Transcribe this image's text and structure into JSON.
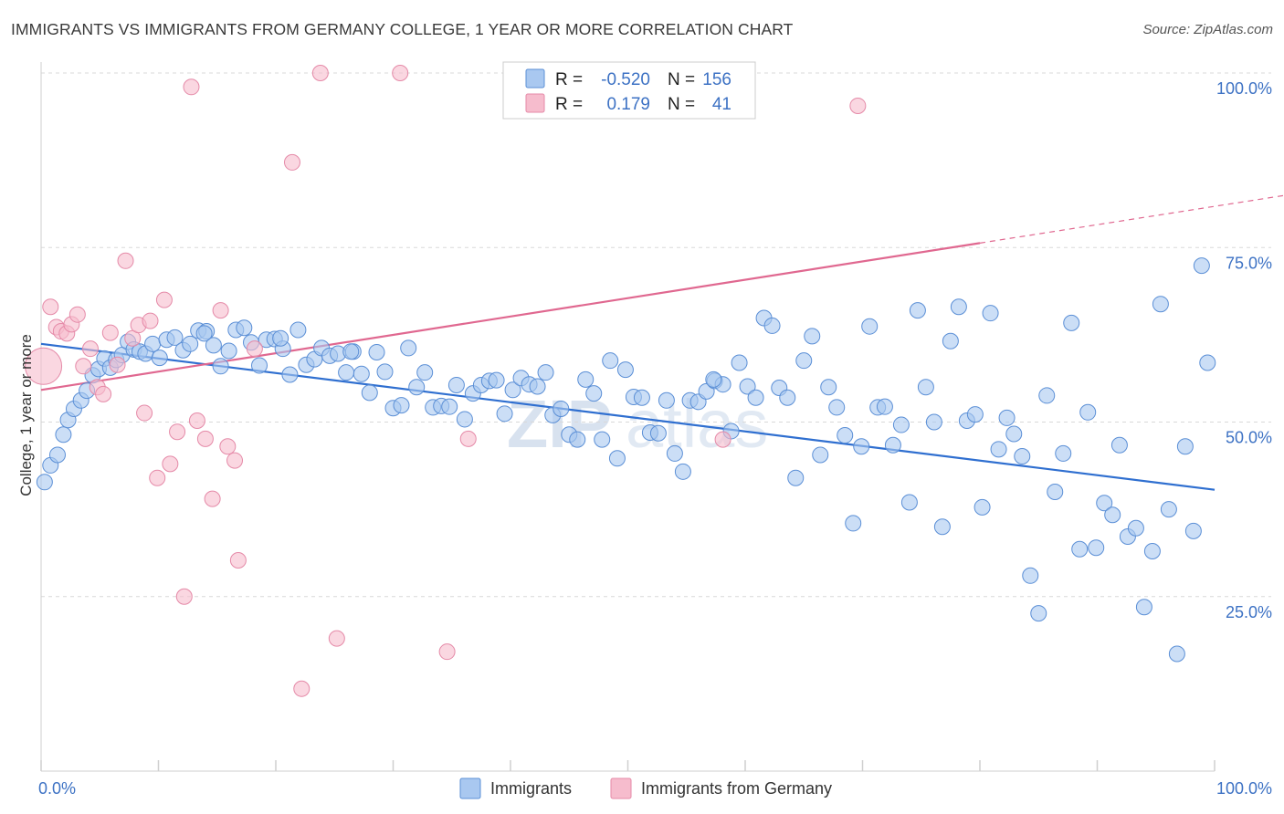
{
  "title": "IMMIGRANTS VS IMMIGRANTS FROM GERMANY COLLEGE, 1 YEAR OR MORE CORRELATION CHART",
  "source": "Source: ZipAtlas.com",
  "watermark": {
    "zip": "ZIP",
    "atlas": "atlas"
  },
  "stats_box": {
    "rows": [
      {
        "r_label": "R =",
        "r_value": "-0.520",
        "n_label": "N =",
        "n_value": "156",
        "color": "#a9c8f0",
        "border": "#5b8fd6"
      },
      {
        "r_label": "R =",
        "r_value": "0.179",
        "n_label": "N =",
        "n_value": "41",
        "color": "#f6bccd",
        "border": "#e07a9a"
      }
    ]
  },
  "colors": {
    "blue_fill": "#a9c8f0",
    "blue_stroke": "#5b8fd6",
    "blue_line": "#2f6fd0",
    "pink_fill": "#f6bccd",
    "pink_stroke": "#e58aa8",
    "pink_line": "#e06890",
    "grid": "#d9d9d9",
    "axis_label": "#3d72c4"
  },
  "chart_data": {
    "type": "scatter",
    "title": "IMMIGRANTS VS IMMIGRANTS FROM GERMANY COLLEGE, 1 YEAR OR MORE CORRELATION CHART",
    "xlabel": "",
    "ylabel": "College, 1 year or more",
    "xlim": [
      0,
      100
    ],
    "ylim": [
      0,
      100
    ],
    "x_tick_labels": [
      "0.0%",
      "100.0%"
    ],
    "y_ticks": [
      25,
      50,
      75,
      100
    ],
    "y_tick_labels": [
      "25.0%",
      "50.0%",
      "75.0%",
      "100.0%"
    ],
    "grid": true,
    "legend_position": "bottom",
    "series": [
      {
        "name": "Immigrants",
        "color": "#a9c8f0",
        "trend": {
          "x": [
            0,
            100
          ],
          "y": [
            61.2,
            40.3
          ],
          "dashed_from": null
        },
        "points": [
          [
            0.3,
            41.4
          ],
          [
            0.8,
            43.8
          ],
          [
            1.4,
            45.3
          ],
          [
            1.9,
            48.2
          ],
          [
            2.3,
            50.3
          ],
          [
            2.8,
            51.9
          ],
          [
            3.4,
            53.1
          ],
          [
            3.9,
            54.5
          ],
          [
            4.4,
            56.7
          ],
          [
            4.9,
            57.6
          ],
          [
            5.4,
            59.1
          ],
          [
            5.9,
            57.8
          ],
          [
            6.4,
            58.9
          ],
          [
            6.9,
            59.6
          ],
          [
            7.4,
            61.5
          ],
          [
            7.9,
            60.4
          ],
          [
            8.4,
            60.1
          ],
          [
            8.9,
            59.8
          ],
          [
            9.5,
            61.2
          ],
          [
            10.1,
            59.2
          ],
          [
            10.7,
            61.8
          ],
          [
            11.4,
            62.1
          ],
          [
            12.1,
            60.3
          ],
          [
            12.7,
            61.2
          ],
          [
            13.4,
            63.1
          ],
          [
            14.1,
            63.0
          ],
          [
            14.7,
            61.0
          ],
          [
            15.3,
            58.0
          ],
          [
            16.0,
            60.2
          ],
          [
            16.6,
            63.2
          ],
          [
            17.3,
            63.5
          ],
          [
            17.9,
            61.4
          ],
          [
            18.6,
            58.1
          ],
          [
            19.2,
            61.8
          ],
          [
            19.9,
            61.9
          ],
          [
            20.6,
            60.5
          ],
          [
            21.2,
            56.8
          ],
          [
            21.9,
            63.2
          ],
          [
            22.6,
            58.2
          ],
          [
            23.3,
            59.0
          ],
          [
            23.9,
            60.6
          ],
          [
            24.6,
            59.5
          ],
          [
            25.3,
            59.8
          ],
          [
            26.0,
            57.1
          ],
          [
            26.6,
            60.1
          ],
          [
            27.3,
            56.9
          ],
          [
            28.0,
            54.2
          ],
          [
            28.6,
            60.0
          ],
          [
            29.3,
            57.2
          ],
          [
            30.0,
            52.0
          ],
          [
            30.7,
            52.4
          ],
          [
            31.3,
            60.6
          ],
          [
            32.0,
            55.0
          ],
          [
            32.7,
            57.1
          ],
          [
            33.4,
            52.1
          ],
          [
            34.1,
            52.3
          ],
          [
            34.8,
            52.2
          ],
          [
            35.4,
            55.3
          ],
          [
            36.1,
            50.4
          ],
          [
            36.8,
            54.1
          ],
          [
            37.5,
            55.3
          ],
          [
            38.2,
            55.9
          ],
          [
            38.8,
            56.0
          ],
          [
            39.5,
            51.2
          ],
          [
            40.2,
            54.6
          ],
          [
            40.9,
            56.3
          ],
          [
            41.6,
            55.4
          ],
          [
            42.3,
            55.1
          ],
          [
            43.0,
            57.1
          ],
          [
            43.6,
            51.0
          ],
          [
            44.3,
            51.9
          ],
          [
            45.0,
            48.2
          ],
          [
            45.7,
            47.5
          ],
          [
            46.4,
            56.1
          ],
          [
            47.1,
            54.1
          ],
          [
            47.8,
            47.5
          ],
          [
            48.5,
            58.8
          ],
          [
            49.1,
            44.8
          ],
          [
            49.8,
            57.5
          ],
          [
            50.5,
            53.6
          ],
          [
            51.2,
            53.5
          ],
          [
            51.9,
            48.5
          ],
          [
            52.6,
            48.4
          ],
          [
            53.3,
            53.1
          ],
          [
            54.0,
            45.5
          ],
          [
            54.7,
            42.9
          ],
          [
            55.3,
            53.1
          ],
          [
            56.0,
            52.9
          ],
          [
            56.7,
            54.4
          ],
          [
            57.4,
            55.9
          ],
          [
            58.1,
            55.4
          ],
          [
            58.8,
            48.7
          ],
          [
            59.5,
            58.5
          ],
          [
            60.2,
            55.1
          ],
          [
            60.9,
            53.5
          ],
          [
            61.6,
            64.9
          ],
          [
            62.3,
            63.8
          ],
          [
            62.9,
            54.9
          ],
          [
            63.6,
            53.5
          ],
          [
            64.3,
            42.0
          ],
          [
            65.0,
            58.8
          ],
          [
            65.7,
            62.3
          ],
          [
            66.4,
            45.3
          ],
          [
            67.1,
            55.0
          ],
          [
            67.8,
            52.1
          ],
          [
            68.5,
            48.1
          ],
          [
            69.2,
            35.5
          ],
          [
            69.9,
            46.5
          ],
          [
            70.6,
            63.7
          ],
          [
            71.3,
            52.1
          ],
          [
            71.9,
            52.2
          ],
          [
            72.6,
            46.7
          ],
          [
            73.3,
            49.6
          ],
          [
            74.0,
            38.5
          ],
          [
            74.7,
            66.0
          ],
          [
            75.4,
            55.0
          ],
          [
            76.1,
            50.0
          ],
          [
            76.8,
            35.0
          ],
          [
            77.5,
            61.6
          ],
          [
            78.2,
            66.5
          ],
          [
            78.9,
            50.2
          ],
          [
            79.6,
            51.1
          ],
          [
            80.2,
            37.8
          ],
          [
            80.9,
            65.6
          ],
          [
            81.6,
            46.1
          ],
          [
            82.3,
            50.6
          ],
          [
            82.9,
            48.3
          ],
          [
            83.6,
            45.1
          ],
          [
            84.3,
            28.0
          ],
          [
            85.0,
            22.6
          ],
          [
            85.7,
            53.8
          ],
          [
            86.4,
            40.0
          ],
          [
            87.1,
            45.5
          ],
          [
            87.8,
            64.2
          ],
          [
            88.5,
            31.8
          ],
          [
            89.2,
            51.4
          ],
          [
            89.9,
            32.0
          ],
          [
            90.6,
            38.4
          ],
          [
            91.3,
            36.7
          ],
          [
            91.9,
            46.7
          ],
          [
            92.6,
            33.6
          ],
          [
            93.3,
            34.8
          ],
          [
            94.0,
            23.5
          ],
          [
            94.7,
            31.5
          ],
          [
            95.4,
            66.9
          ],
          [
            96.1,
            37.5
          ],
          [
            96.8,
            16.8
          ],
          [
            97.5,
            46.5
          ],
          [
            98.2,
            34.4
          ],
          [
            98.9,
            72.4
          ],
          [
            99.4,
            58.5
          ],
          [
            57.3,
            56.1
          ],
          [
            26.4,
            60.1
          ],
          [
            20.4,
            62.0
          ],
          [
            13.9,
            62.7
          ]
        ]
      },
      {
        "name": "Immigrants from Germany",
        "color": "#f6bccd",
        "trend": {
          "x": [
            0,
            100
          ],
          "y": [
            54.6,
            80.9
          ],
          "dashed_from": 80
        },
        "points": [
          [
            0.2,
            58.0
          ],
          [
            0.8,
            66.5
          ],
          [
            1.3,
            63.6
          ],
          [
            1.7,
            63.0
          ],
          [
            2.2,
            62.7
          ],
          [
            2.6,
            64.0
          ],
          [
            3.1,
            65.4
          ],
          [
            3.6,
            58.0
          ],
          [
            4.2,
            60.5
          ],
          [
            4.8,
            55.0
          ],
          [
            5.3,
            54.0
          ],
          [
            5.9,
            62.8
          ],
          [
            6.5,
            58.2
          ],
          [
            7.2,
            73.1
          ],
          [
            7.8,
            62.0
          ],
          [
            8.3,
            63.9
          ],
          [
            8.8,
            51.3
          ],
          [
            9.3,
            64.5
          ],
          [
            9.9,
            42.0
          ],
          [
            10.5,
            67.5
          ],
          [
            11.0,
            44.0
          ],
          [
            11.6,
            48.6
          ],
          [
            12.2,
            25.0
          ],
          [
            12.8,
            98.0
          ],
          [
            13.3,
            50.2
          ],
          [
            14.0,
            47.6
          ],
          [
            14.6,
            39.0
          ],
          [
            15.3,
            66.0
          ],
          [
            15.9,
            46.5
          ],
          [
            16.5,
            44.5
          ],
          [
            16.8,
            30.2
          ],
          [
            18.2,
            60.5
          ],
          [
            21.4,
            87.2
          ],
          [
            22.2,
            11.8
          ],
          [
            23.8,
            100.0
          ],
          [
            25.2,
            19.0
          ],
          [
            30.6,
            100.0
          ],
          [
            34.6,
            17.1
          ],
          [
            36.4,
            47.6
          ],
          [
            69.6,
            95.3
          ],
          [
            58.1,
            47.5
          ]
        ]
      }
    ]
  }
}
